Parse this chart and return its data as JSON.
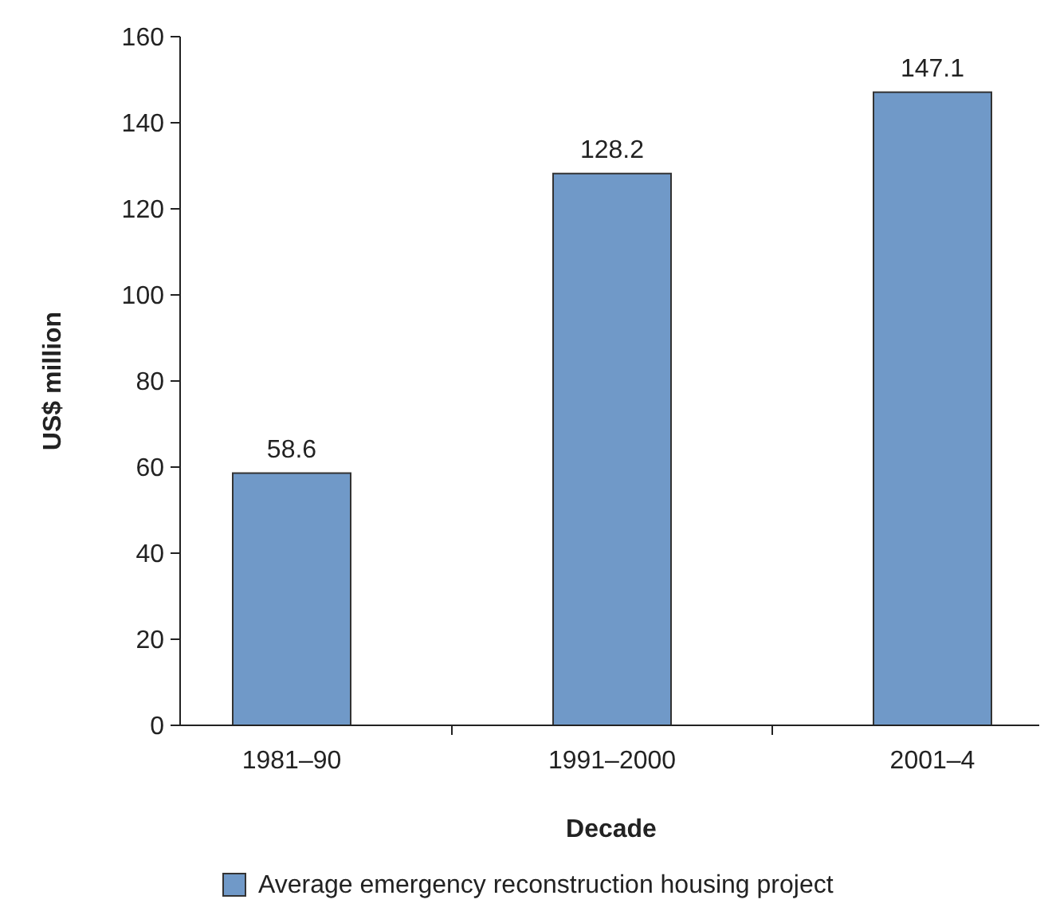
{
  "chart_data": {
    "type": "bar",
    "xlabel": "Decade",
    "ylabel": "US$ million",
    "categories": [
      "1981–90",
      "1991–2000",
      "2001–4"
    ],
    "series": [
      {
        "name": "Average emergency reconstruction housing project",
        "color": "#7099c8",
        "values": [
          58.6,
          128.2,
          147.1
        ]
      }
    ],
    "ylim": [
      0,
      160
    ],
    "yticks": [
      0,
      20,
      40,
      60,
      80,
      100,
      120,
      140,
      160
    ],
    "data_labels": true,
    "legend": "bottom",
    "grid": false
  }
}
